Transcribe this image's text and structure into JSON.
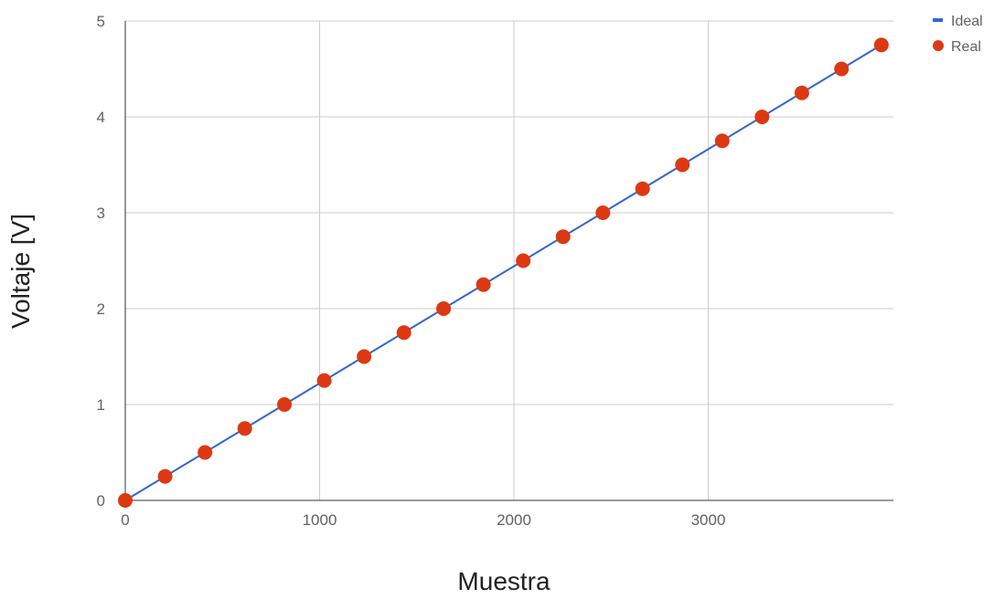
{
  "chart_data": {
    "type": "scatter",
    "title": "",
    "xlabel": "Muestra",
    "ylabel": "Voltaje [V]",
    "xlim": [
      -40,
      3960
    ],
    "ylim": [
      0,
      5
    ],
    "x_ticks": [
      0,
      1000,
      2000,
      3000
    ],
    "x_tick_labels": [
      "0",
      "1000",
      "2000",
      "3000"
    ],
    "y_ticks": [
      0,
      1,
      2,
      3,
      4,
      5
    ],
    "y_tick_labels": [
      "0",
      "1",
      "2",
      "3",
      "4",
      "5"
    ],
    "grid": true,
    "legend_position": "top-right",
    "series": [
      {
        "name": "Ideal",
        "kind": "line",
        "color": "#3366cc",
        "x": [
          0,
          3890
        ],
        "y": [
          0,
          4.75
        ]
      },
      {
        "name": "Real",
        "kind": "points",
        "color": "#dc3912",
        "x": [
          0,
          205,
          410,
          615,
          819,
          1024,
          1229,
          1434,
          1638,
          1843,
          2048,
          2253,
          2458,
          2662,
          2867,
          3072,
          3277,
          3482,
          3686,
          3891
        ],
        "y": [
          0,
          0.25,
          0.5,
          0.75,
          1.0,
          1.25,
          1.5,
          1.75,
          2.0,
          2.25,
          2.5,
          2.75,
          3.0,
          3.25,
          3.5,
          3.75,
          4.0,
          4.25,
          4.5,
          4.75
        ]
      }
    ]
  }
}
